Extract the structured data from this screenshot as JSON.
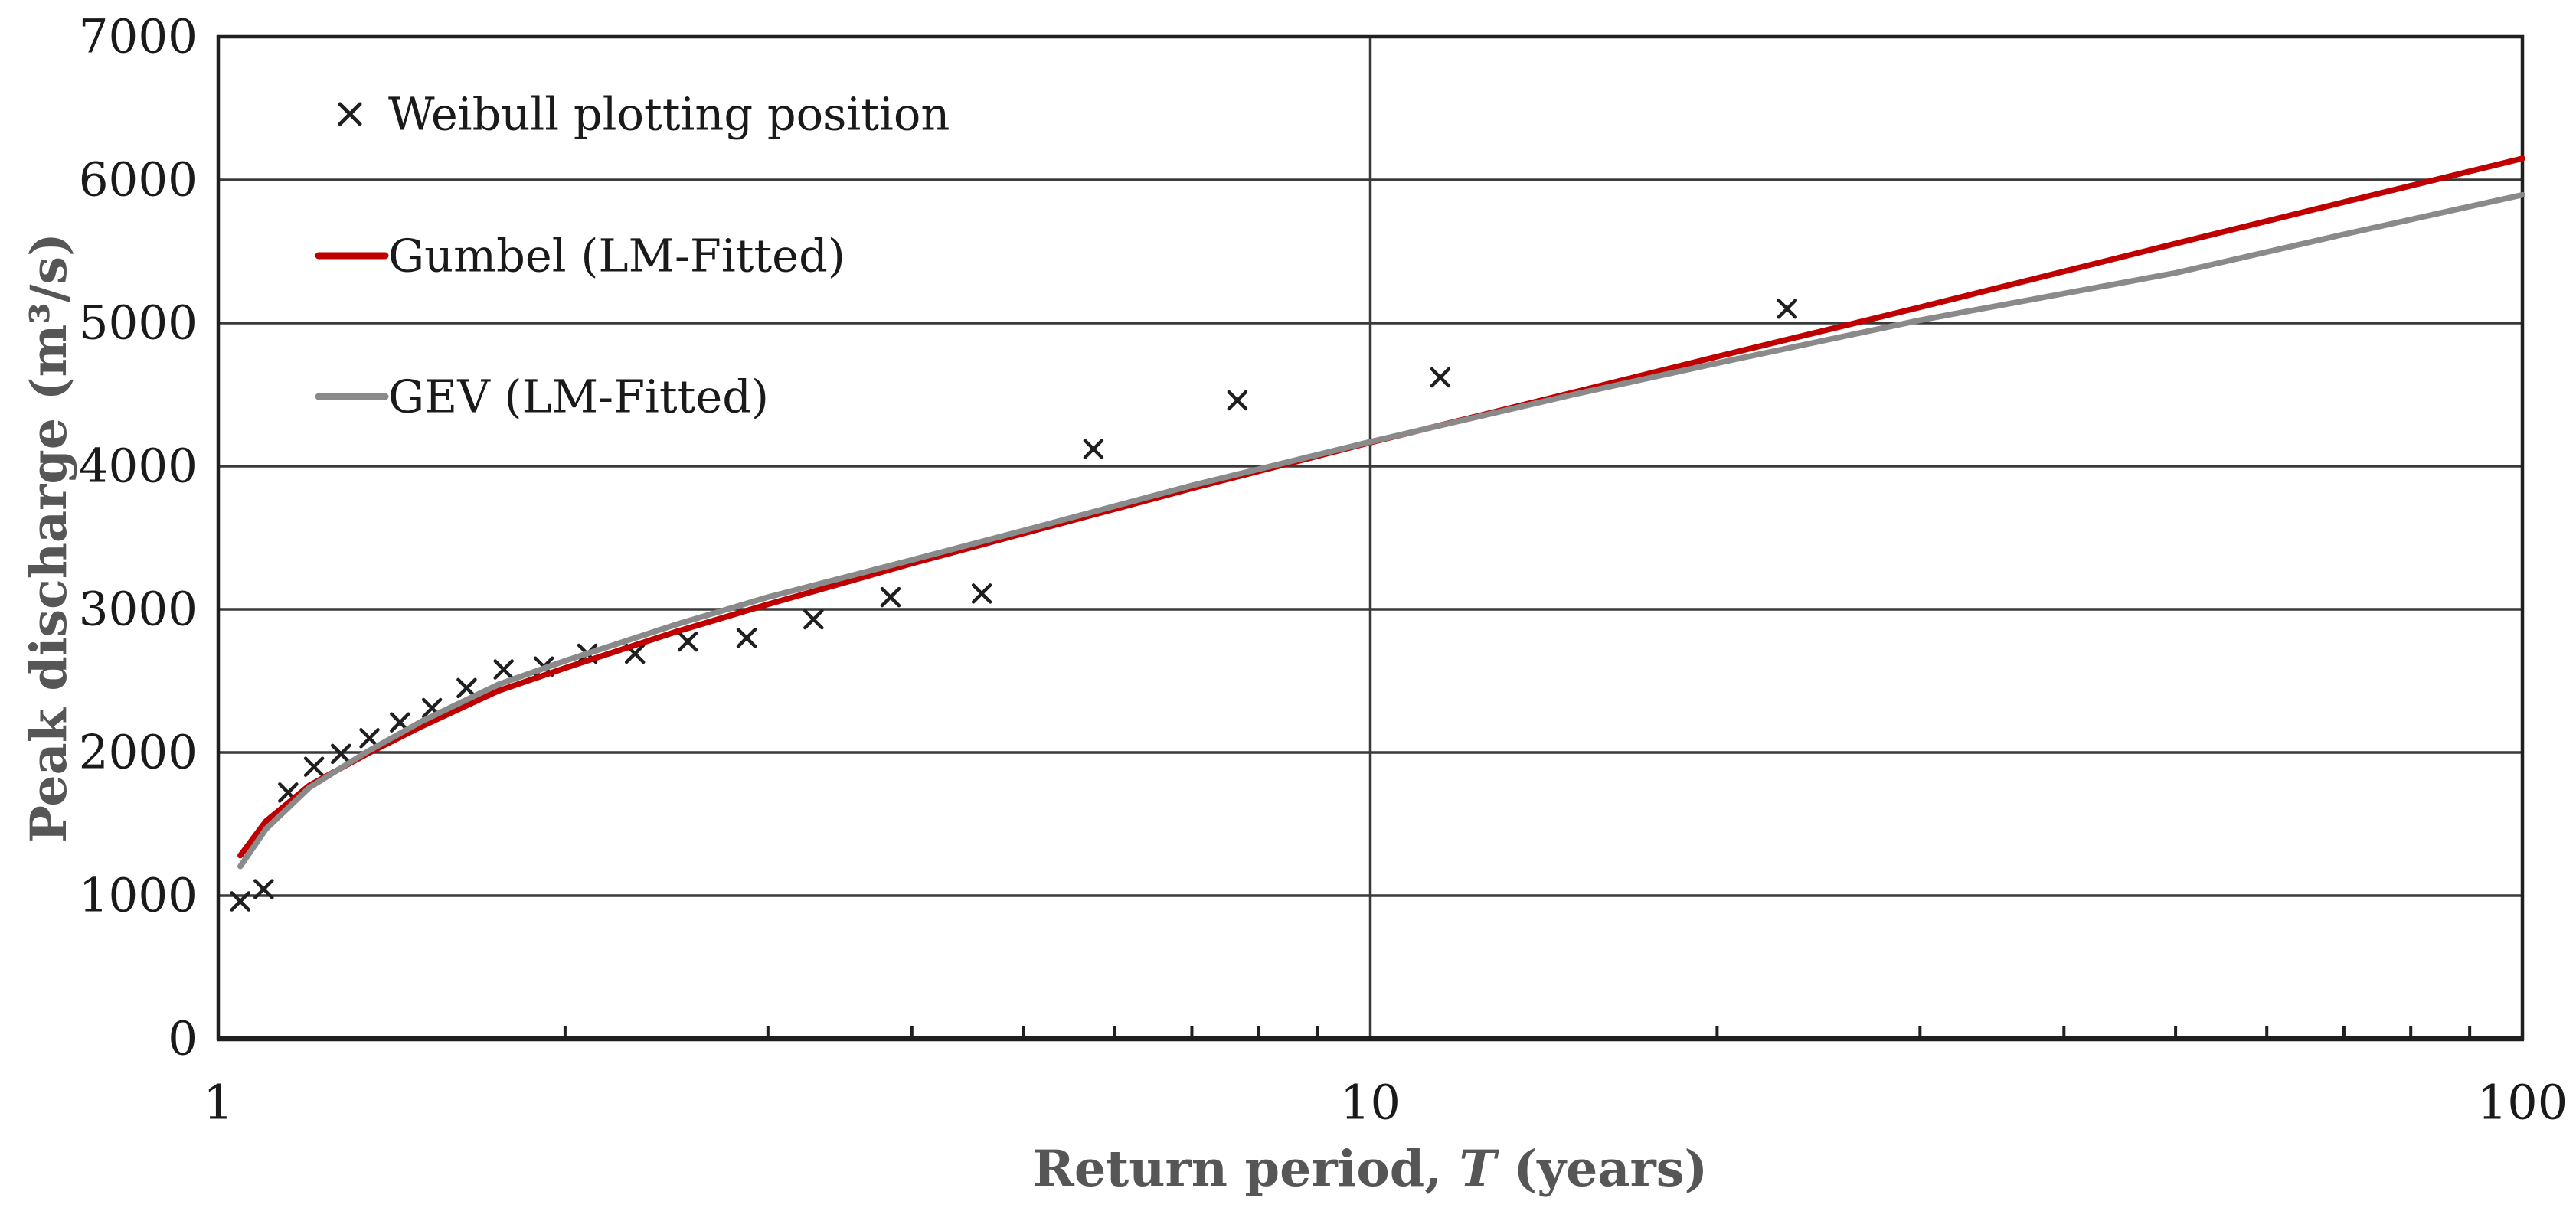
{
  "page": {
    "background": "#ffffff"
  },
  "chart_data": {
    "type": "scatter+line",
    "title": "",
    "xlabel": "Return period, T (years)",
    "xlabel_parts": {
      "pre": "Return period, ",
      "italic_var": "T",
      "post": " (years)"
    },
    "ylabel": "Peak discharge (m³/s)",
    "x_scale": "log",
    "xlim": [
      1,
      100
    ],
    "ylim": [
      0,
      7000
    ],
    "y_ticks": [
      0,
      1000,
      2000,
      3000,
      4000,
      5000,
      6000,
      7000
    ],
    "x_major_ticks": [
      1,
      10,
      100
    ],
    "x_minor_ticks": [
      2,
      3,
      4,
      5,
      6,
      7,
      8,
      9,
      20,
      30,
      40,
      50,
      60,
      70,
      80,
      90
    ],
    "grid": {
      "horizontal_step": 1000,
      "vertical_at": [
        10
      ],
      "grid_on": true
    },
    "legend": {
      "position": "top-left-inside",
      "items": [
        {
          "label": "Weibull plotting position",
          "swatch": "x-marker",
          "color": "#1f1f1f"
        },
        {
          "label": "Gumbel (LM-Fitted)",
          "swatch": "line",
          "color": "#c00000"
        },
        {
          "label": "GEV (LM-Fitted)",
          "swatch": "line",
          "color": "#8a8a8a"
        }
      ]
    },
    "series": [
      {
        "name": "Weibull plotting position",
        "slug": "weibull-plotting-position",
        "type": "scatter",
        "marker": "x",
        "color": "#1f1f1f",
        "points": [
          [
            1.045,
            960
          ],
          [
            1.095,
            1045
          ],
          [
            1.15,
            1720
          ],
          [
            1.211,
            1900
          ],
          [
            1.278,
            1990
          ],
          [
            1.353,
            2100
          ],
          [
            1.438,
            2210
          ],
          [
            1.533,
            2310
          ],
          [
            1.643,
            2450
          ],
          [
            1.769,
            2580
          ],
          [
            1.917,
            2600
          ],
          [
            2.091,
            2690
          ],
          [
            2.3,
            2690
          ],
          [
            2.556,
            2775
          ],
          [
            2.875,
            2800
          ],
          [
            3.286,
            2930
          ],
          [
            3.833,
            3085
          ],
          [
            4.6,
            3110
          ],
          [
            5.75,
            4120
          ],
          [
            7.667,
            4460
          ],
          [
            11.5,
            4620
          ],
          [
            23,
            5100
          ]
        ]
      },
      {
        "name": "Gumbel (LM-Fitted)",
        "slug": "gumbel-lm-fitted",
        "type": "line",
        "color": "#c00000",
        "points": [
          [
            1.045,
            1280
          ],
          [
            1.1,
            1520
          ],
          [
            1.2,
            1770
          ],
          [
            1.35,
            1995
          ],
          [
            1.5,
            2180
          ],
          [
            1.75,
            2430
          ],
          [
            2,
            2590
          ],
          [
            2.5,
            2845
          ],
          [
            3,
            3035
          ],
          [
            4,
            3320
          ],
          [
            5,
            3530
          ],
          [
            7,
            3845
          ],
          [
            10,
            4165
          ],
          [
            15,
            4515
          ],
          [
            20,
            4765
          ],
          [
            30,
            5110
          ],
          [
            50,
            5555
          ],
          [
            70,
            5845
          ],
          [
            100,
            6150
          ]
        ]
      },
      {
        "name": "GEV (LM-Fitted)",
        "slug": "gev-lm-fitted",
        "type": "line",
        "color": "#8a8a8a",
        "points": [
          [
            1.045,
            1205
          ],
          [
            1.1,
            1465
          ],
          [
            1.2,
            1755
          ],
          [
            1.35,
            2010
          ],
          [
            1.5,
            2215
          ],
          [
            1.75,
            2475
          ],
          [
            2,
            2640
          ],
          [
            2.5,
            2895
          ],
          [
            3,
            3085
          ],
          [
            4,
            3345
          ],
          [
            5,
            3550
          ],
          [
            7,
            3865
          ],
          [
            10,
            4170
          ],
          [
            15,
            4500
          ],
          [
            20,
            4720
          ],
          [
            30,
            5020
          ],
          [
            50,
            5350
          ],
          [
            70,
            5620
          ],
          [
            100,
            5895
          ]
        ]
      }
    ],
    "colors": {
      "background": "#ffffff",
      "grid": "#3a3a3a",
      "border": "#1f1f1f",
      "tick_label": "#1a1a1a",
      "axis_title": "#565656",
      "legend_text": "#1a1a1a"
    }
  }
}
